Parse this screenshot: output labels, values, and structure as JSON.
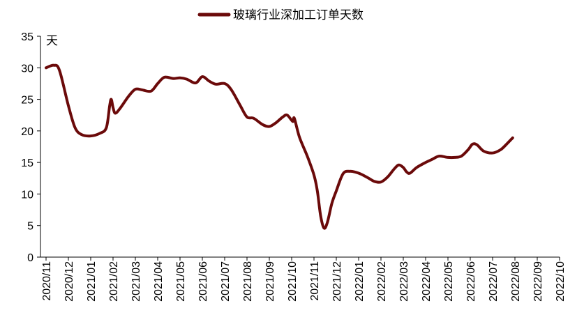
{
  "chart_data": {
    "type": "line",
    "title": "",
    "xlabel": "",
    "ylabel": "",
    "unit": "天",
    "ylim": [
      0,
      35
    ],
    "yticks": [
      0,
      5,
      10,
      15,
      20,
      25,
      30,
      35
    ],
    "grid": false,
    "legend_position": "top-center",
    "categories": [
      "2020/11",
      "2020/12",
      "2021/01",
      "2021/02",
      "2021/03",
      "2021/04",
      "2021/05",
      "2021/06",
      "2021/07",
      "2021/08",
      "2021/09",
      "2021/10",
      "2021/11",
      "2021/12",
      "2022/01",
      "2022/02",
      "2022/03",
      "2022/04",
      "2022/05",
      "2022/06",
      "2022/07",
      "2022/08",
      "2022/09",
      "2022/10"
    ],
    "series": [
      {
        "name": "玻璃行业深加工订单天数",
        "color": "#6b0a0a",
        "points": [
          [
            0.0,
            30.0
          ],
          [
            0.35,
            30.4
          ],
          [
            0.6,
            29.6
          ],
          [
            1.0,
            24.0
          ],
          [
            1.3,
            20.5
          ],
          [
            1.6,
            19.4
          ],
          [
            2.0,
            19.2
          ],
          [
            2.4,
            19.6
          ],
          [
            2.7,
            20.5
          ],
          [
            2.85,
            24.0
          ],
          [
            2.92,
            25.0
          ],
          [
            3.0,
            23.7
          ],
          [
            3.1,
            22.8
          ],
          [
            3.3,
            23.5
          ],
          [
            3.7,
            25.5
          ],
          [
            4.0,
            26.6
          ],
          [
            4.3,
            26.5
          ],
          [
            4.7,
            26.3
          ],
          [
            5.0,
            27.5
          ],
          [
            5.3,
            28.5
          ],
          [
            5.7,
            28.3
          ],
          [
            6.0,
            28.4
          ],
          [
            6.3,
            28.2
          ],
          [
            6.7,
            27.6
          ],
          [
            7.0,
            28.6
          ],
          [
            7.3,
            27.9
          ],
          [
            7.6,
            27.4
          ],
          [
            8.0,
            27.5
          ],
          [
            8.3,
            26.5
          ],
          [
            8.7,
            24.0
          ],
          [
            9.0,
            22.2
          ],
          [
            9.3,
            22.0
          ],
          [
            9.7,
            21.0
          ],
          [
            10.0,
            20.7
          ],
          [
            10.3,
            21.3
          ],
          [
            10.6,
            22.2
          ],
          [
            10.8,
            22.5
          ],
          [
            11.05,
            21.5
          ],
          [
            11.12,
            22.0
          ],
          [
            11.35,
            19.0
          ],
          [
            11.7,
            16.0
          ],
          [
            12.0,
            13.0
          ],
          [
            12.15,
            10.5
          ],
          [
            12.3,
            6.5
          ],
          [
            12.45,
            4.6
          ],
          [
            12.6,
            5.5
          ],
          [
            12.8,
            8.5
          ],
          [
            13.0,
            10.5
          ],
          [
            13.3,
            13.2
          ],
          [
            13.6,
            13.6
          ],
          [
            14.0,
            13.3
          ],
          [
            14.4,
            12.6
          ],
          [
            14.7,
            12.0
          ],
          [
            15.0,
            11.9
          ],
          [
            15.3,
            12.7
          ],
          [
            15.6,
            14.0
          ],
          [
            15.8,
            14.6
          ],
          [
            16.0,
            14.2
          ],
          [
            16.15,
            13.5
          ],
          [
            16.3,
            13.3
          ],
          [
            16.6,
            14.2
          ],
          [
            17.0,
            15.0
          ],
          [
            17.3,
            15.5
          ],
          [
            17.6,
            16.0
          ],
          [
            18.0,
            15.8
          ],
          [
            18.3,
            15.8
          ],
          [
            18.6,
            16.0
          ],
          [
            18.9,
            17.0
          ],
          [
            19.1,
            17.9
          ],
          [
            19.3,
            17.8
          ],
          [
            19.6,
            16.8
          ],
          [
            20.0,
            16.5
          ],
          [
            20.35,
            17.0
          ],
          [
            20.6,
            17.8
          ],
          [
            20.9,
            18.9
          ]
        ]
      }
    ]
  }
}
